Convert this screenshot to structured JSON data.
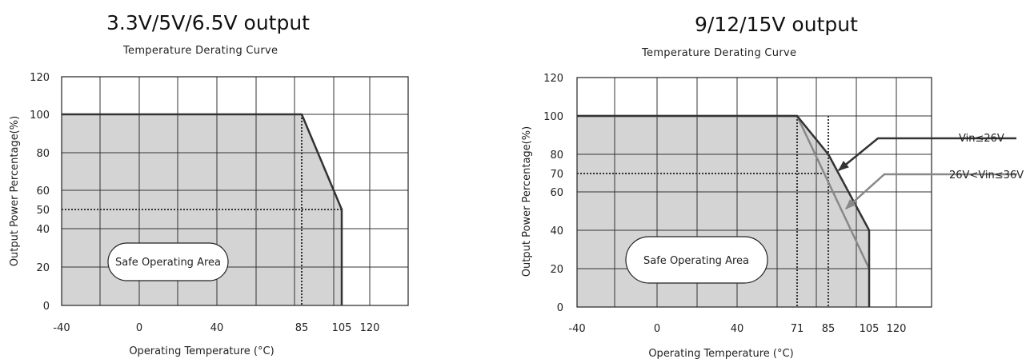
{
  "chart_data": [
    {
      "type": "line",
      "title": "3.3V/5V/6.5V output",
      "subtitle": "Temperature Derating Curve",
      "xlabel": "Operating Temperature (°C)",
      "ylabel": "Output Power Percentage(%)",
      "xlim": [
        -40,
        120
      ],
      "ylim": [
        0,
        120
      ],
      "x_tick_labels": [
        "-40",
        "0",
        "40",
        "85",
        "105",
        "120"
      ],
      "y_tick_labels": [
        "0",
        "20",
        "40",
        "50",
        "60",
        "80",
        "100",
        "120"
      ],
      "grid": true,
      "annotation": "Safe Operating Area",
      "reference_lines": {
        "x": 85,
        "y": 50
      },
      "series": [
        {
          "x": [
            -40,
            85,
            105,
            105
          ],
          "y": [
            100,
            100,
            50,
            0
          ]
        }
      ]
    },
    {
      "type": "line",
      "title": "9/12/15V output",
      "subtitle": "Temperature Derating Curve",
      "xlabel": "Operating Temperature (°C)",
      "ylabel": "Output Power Percentage(%)",
      "xlim": [
        -40,
        120
      ],
      "ylim": [
        0,
        120
      ],
      "x_tick_labels": [
        "-40",
        "0",
        "40",
        "71",
        "85",
        "105",
        "120"
      ],
      "y_tick_labels": [
        "0",
        "20",
        "40",
        "60",
        "70",
        "80",
        "100",
        "120"
      ],
      "grid": true,
      "annotation": "Safe Operating Area",
      "reference_lines": {
        "x": [
          71,
          85
        ],
        "y": 70
      },
      "series": [
        {
          "name": "Vin≤26V",
          "x": [
            -40,
            71,
            85,
            105,
            105
          ],
          "y": [
            100,
            100,
            80,
            40,
            0
          ],
          "color": "#333333"
        },
        {
          "name": "26V<Vin≤36V",
          "x": [
            -40,
            71,
            105
          ],
          "y": [
            100,
            100,
            20
          ],
          "color": "#888888"
        }
      ]
    }
  ]
}
